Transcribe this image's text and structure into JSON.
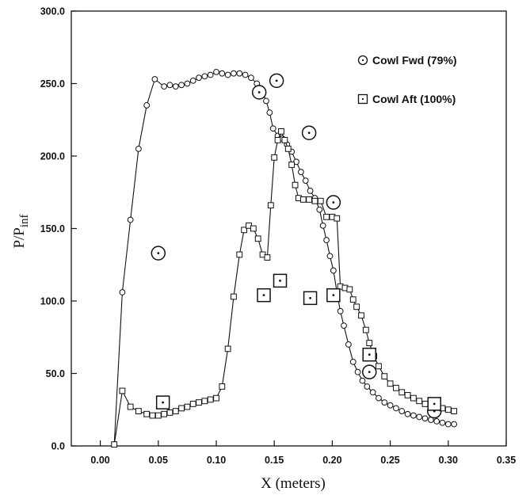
{
  "chart_data": {
    "type": "line",
    "xlabel": "X (meters)",
    "ylabel": "P/P",
    "ylabel_subscript": "inf",
    "xlim": [
      -0.025,
      0.35
    ],
    "ylim": [
      0,
      300
    ],
    "xticks": [
      "0.00",
      "0.05",
      "0.10",
      "0.15",
      "0.20",
      "0.25",
      "0.30",
      "0.35"
    ],
    "xtick_values": [
      0.0,
      0.05,
      0.1,
      0.15,
      0.2,
      0.25,
      0.3,
      0.35
    ],
    "yticks": [
      "0.0",
      "50.0",
      "100.0",
      "150.0",
      "200.0",
      "250.0",
      "300.0"
    ],
    "ytick_values": [
      0,
      50,
      100,
      150,
      200,
      250,
      300
    ],
    "grid": false,
    "legend_position": "top-right",
    "series": [
      {
        "name": "Cowl Fwd (79%)",
        "marker": "circle",
        "curve": [
          [
            0.012,
            1
          ],
          [
            0.019,
            106
          ],
          [
            0.026,
            156
          ],
          [
            0.033,
            205
          ],
          [
            0.04,
            235
          ],
          [
            0.047,
            253
          ],
          [
            0.055,
            248
          ],
          [
            0.06,
            249
          ],
          [
            0.065,
            248
          ],
          [
            0.07,
            249
          ],
          [
            0.075,
            250
          ],
          [
            0.08,
            252
          ],
          [
            0.085,
            254
          ],
          [
            0.09,
            255
          ],
          [
            0.095,
            256
          ],
          [
            0.1,
            258
          ],
          [
            0.105,
            257
          ],
          [
            0.11,
            256
          ],
          [
            0.115,
            257
          ],
          [
            0.12,
            257
          ],
          [
            0.125,
            256
          ],
          [
            0.13,
            254
          ],
          [
            0.135,
            250
          ],
          [
            0.14,
            244
          ],
          [
            0.143,
            238
          ],
          [
            0.146,
            230
          ],
          [
            0.149,
            219
          ],
          [
            0.153,
            214
          ],
          [
            0.157,
            212
          ],
          [
            0.161,
            208
          ],
          [
            0.165,
            203
          ],
          [
            0.169,
            196
          ],
          [
            0.173,
            189
          ],
          [
            0.177,
            183
          ],
          [
            0.181,
            176
          ],
          [
            0.185,
            171
          ],
          [
            0.189,
            163
          ],
          [
            0.192,
            152
          ],
          [
            0.195,
            142
          ],
          [
            0.198,
            131
          ],
          [
            0.201,
            121
          ],
          [
            0.204,
            106
          ],
          [
            0.207,
            93
          ],
          [
            0.21,
            83
          ],
          [
            0.214,
            70
          ],
          [
            0.218,
            58
          ],
          [
            0.222,
            51
          ],
          [
            0.226,
            45
          ],
          [
            0.23,
            41
          ],
          [
            0.235,
            37
          ],
          [
            0.24,
            33
          ],
          [
            0.245,
            30
          ],
          [
            0.25,
            28
          ],
          [
            0.255,
            26
          ],
          [
            0.26,
            24
          ],
          [
            0.265,
            22
          ],
          [
            0.27,
            21
          ],
          [
            0.275,
            20
          ],
          [
            0.28,
            19
          ],
          [
            0.285,
            18
          ],
          [
            0.29,
            17
          ],
          [
            0.295,
            16
          ],
          [
            0.3,
            15
          ],
          [
            0.305,
            15
          ]
        ],
        "experimental": [
          [
            0.05,
            133
          ],
          [
            0.137,
            244
          ],
          [
            0.152,
            252
          ],
          [
            0.18,
            216
          ],
          [
            0.201,
            168
          ],
          [
            0.232,
            51
          ],
          [
            0.288,
            24
          ]
        ]
      },
      {
        "name": "Cowl Aft (100%)",
        "marker": "square",
        "curve": [
          [
            0.012,
            1
          ],
          [
            0.019,
            38
          ],
          [
            0.026,
            27
          ],
          [
            0.033,
            24
          ],
          [
            0.04,
            22
          ],
          [
            0.045,
            21
          ],
          [
            0.05,
            21
          ],
          [
            0.055,
            22
          ],
          [
            0.06,
            23
          ],
          [
            0.065,
            24
          ],
          [
            0.07,
            26
          ],
          [
            0.075,
            27
          ],
          [
            0.08,
            29
          ],
          [
            0.085,
            30
          ],
          [
            0.09,
            31
          ],
          [
            0.095,
            32
          ],
          [
            0.1,
            33
          ],
          [
            0.105,
            41
          ],
          [
            0.11,
            67
          ],
          [
            0.115,
            103
          ],
          [
            0.12,
            132
          ],
          [
            0.124,
            149
          ],
          [
            0.128,
            152
          ],
          [
            0.132,
            150
          ],
          [
            0.136,
            143
          ],
          [
            0.14,
            132
          ],
          [
            0.144,
            130
          ],
          [
            0.147,
            166
          ],
          [
            0.15,
            199
          ],
          [
            0.153,
            211
          ],
          [
            0.156,
            217
          ],
          [
            0.159,
            211
          ],
          [
            0.162,
            205
          ],
          [
            0.165,
            194
          ],
          [
            0.168,
            180
          ],
          [
            0.171,
            171
          ],
          [
            0.175,
            170
          ],
          [
            0.18,
            170
          ],
          [
            0.185,
            169
          ],
          [
            0.19,
            169
          ],
          [
            0.195,
            158
          ],
          [
            0.2,
            158
          ],
          [
            0.204,
            157
          ],
          [
            0.207,
            110
          ],
          [
            0.211,
            109
          ],
          [
            0.215,
            108
          ],
          [
            0.218,
            101
          ],
          [
            0.221,
            96
          ],
          [
            0.225,
            90
          ],
          [
            0.229,
            80
          ],
          [
            0.232,
            71
          ],
          [
            0.236,
            62
          ],
          [
            0.24,
            55
          ],
          [
            0.245,
            48
          ],
          [
            0.25,
            43
          ],
          [
            0.255,
            40
          ],
          [
            0.26,
            37
          ],
          [
            0.265,
            35
          ],
          [
            0.27,
            33
          ],
          [
            0.275,
            31
          ],
          [
            0.28,
            29
          ],
          [
            0.285,
            28
          ],
          [
            0.29,
            27
          ],
          [
            0.295,
            26
          ],
          [
            0.3,
            25
          ],
          [
            0.305,
            24
          ]
        ],
        "experimental": [
          [
            0.054,
            30
          ],
          [
            0.141,
            104
          ],
          [
            0.155,
            114
          ],
          [
            0.181,
            102
          ],
          [
            0.201,
            104
          ],
          [
            0.232,
            63
          ],
          [
            0.288,
            29
          ]
        ]
      }
    ]
  }
}
